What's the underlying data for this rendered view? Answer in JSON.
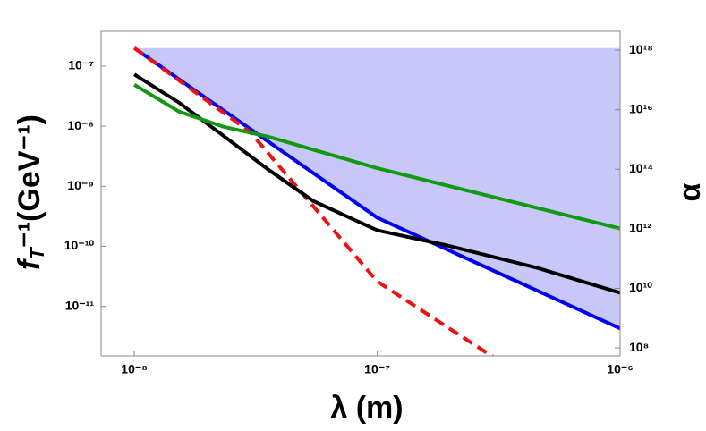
{
  "chart_data": {
    "type": "line",
    "xlabel": "λ (m)",
    "ylabel": {
      "base": "f",
      "sub": "T",
      "rest": "⁻¹(GeV⁻¹)"
    },
    "y2label": "α",
    "log_x": true,
    "log_y": true,
    "xlim": [
      7.3e-09,
      1e-06
    ],
    "ylim": [
      1.5e-12,
      3.8e-07
    ],
    "y2lim": [
      54000000.0,
      4.3e+18
    ],
    "xticks": [
      {
        "value": 1e-08,
        "label": "10⁻⁸"
      },
      {
        "value": 1e-07,
        "label": "10⁻⁷"
      },
      {
        "value": 1e-06,
        "label": "10⁻⁶"
      }
    ],
    "yticks": [
      {
        "value": 1e-11,
        "label": "10⁻¹¹"
      },
      {
        "value": 1e-10,
        "label": "10⁻¹⁰"
      },
      {
        "value": 1e-09,
        "label": "10⁻⁹"
      },
      {
        "value": 1e-08,
        "label": "10⁻⁸"
      },
      {
        "value": 1e-07,
        "label": "10⁻⁷"
      }
    ],
    "y2ticks": [
      {
        "value": 100000000.0,
        "label": "10⁸"
      },
      {
        "value": 10000000000.0,
        "label": "10¹⁰"
      },
      {
        "value": 1000000000000.0,
        "label": "10¹²"
      },
      {
        "value": 100000000000000.0,
        "label": "10¹⁴"
      },
      {
        "value": 1e+16,
        "label": "10¹⁶"
      },
      {
        "value": 1e+18,
        "label": "10¹⁸"
      }
    ],
    "shade": {
      "color": "#c8c8f8",
      "x": [
        1e-08,
        1e-06
      ],
      "top": 2e-07
    },
    "series": [
      {
        "color": "#0000ee",
        "dash": false,
        "x": [
          1e-08,
          1e-07,
          1e-06
        ],
        "values": [
          2e-07,
          3e-10,
          4.3e-12
        ]
      },
      {
        "color": "#ee1111",
        "dash": true,
        "x": [
          1e-08,
          3e-08,
          1e-07,
          3e-07
        ],
        "values": [
          2e-07,
          8e-09,
          2.6e-11,
          1.44e-12
        ]
      },
      {
        "color": "#000000",
        "dash": false,
        "x": [
          1e-08,
          1.53e-08,
          2.33e-08,
          3.56e-08,
          5.45e-08,
          1e-07,
          1.95e-07,
          4.54e-07,
          1e-06
        ],
        "values": [
          7.3e-08,
          2.46e-08,
          6.9e-09,
          1.9e-09,
          5.7e-10,
          1.85e-10,
          1.03e-10,
          4.4e-11,
          1.68e-11
        ]
      },
      {
        "color": "#119911",
        "dash": false,
        "x": [
          1e-08,
          1.53e-08,
          2.33e-08,
          3.56e-08,
          1e-07,
          1e-06
        ],
        "values": [
          4.9e-08,
          1.75e-08,
          9.8e-09,
          6.7e-09,
          2e-09,
          1.98e-10
        ]
      }
    ]
  }
}
